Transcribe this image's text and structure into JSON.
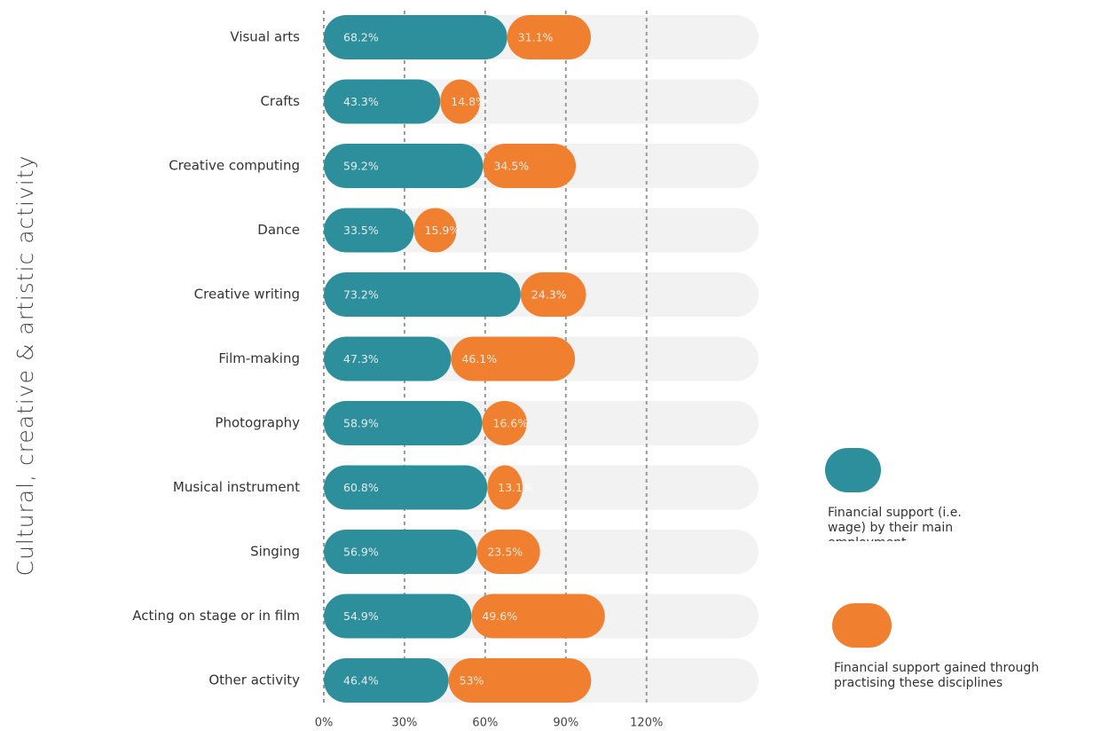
{
  "chart_data": {
    "type": "stacked-bar-horizontal",
    "y_axis_label": "Cultural, creative & artistic activity",
    "categories": [
      "Visual arts",
      "Crafts",
      "Creative computing",
      "Dance",
      "Creative writing",
      "Film-making",
      "Photography",
      "Musical instrument",
      "Singing",
      "Acting on stage or in film",
      "Other activity"
    ],
    "series": [
      {
        "name": "Financial support (i.e. wage) by their main employment",
        "color": "#2e8f9c",
        "values": [
          68.2,
          43.3,
          59.2,
          33.5,
          73.2,
          47.3,
          58.9,
          60.8,
          56.9,
          54.9,
          46.4
        ],
        "value_labels": [
          "68.2%",
          "43.3%",
          "59.2%",
          "33.5%",
          "73.2%",
          "47.3%",
          "58.9%",
          "60.8%",
          "56.9%",
          "54.9%",
          "46.4%"
        ]
      },
      {
        "name": "Financial support gained through practising these disciplines",
        "color": "#f08030",
        "values": [
          31.1,
          14.8,
          34.5,
          15.9,
          24.3,
          46.1,
          16.6,
          13.1,
          23.5,
          49.6,
          53
        ],
        "value_labels": [
          "31.1%",
          "14.8%",
          "34.5%",
          "15.9%",
          "24.3%",
          "46.1%",
          "16.6%",
          "13.1%",
          "23.5%",
          "49.6%",
          "53%"
        ]
      }
    ],
    "xlim": [
      0,
      160
    ],
    "xticks": [
      {
        "value": 0,
        "label": "0%"
      },
      {
        "value": 30,
        "label": "30%"
      },
      {
        "value": 60,
        "label": "60%"
      },
      {
        "value": 90,
        "label": "90%"
      },
      {
        "value": 120,
        "label": "120%"
      }
    ],
    "grid": true
  }
}
